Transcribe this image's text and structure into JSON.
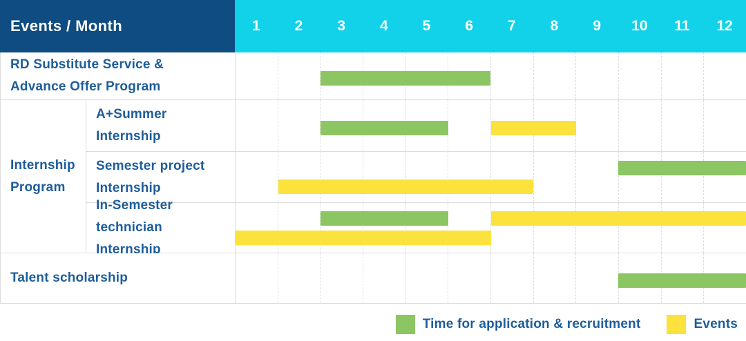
{
  "palette": {
    "navy": "#0E4C82",
    "cyan": "#12D2E9",
    "green": "#8CC663",
    "yellow": "#FBE23D",
    "label_blue": "#1D5D9B",
    "grid_line": "#DCDCDC"
  },
  "header": {
    "title": "Events / Month",
    "months": [
      "1",
      "2",
      "3",
      "4",
      "5",
      "6",
      "7",
      "8",
      "9",
      "10",
      "11",
      "12"
    ]
  },
  "legend": [
    {
      "key": "application",
      "label": "Time for application & recruitment",
      "color": "#8CC663"
    },
    {
      "key": "events",
      "label": "Events",
      "color": "#FBE23D"
    }
  ],
  "chart_data": {
    "type": "gantt",
    "unit": "month",
    "x_domain": [
      1,
      12
    ],
    "x_ticks": [
      "1",
      "2",
      "3",
      "4",
      "5",
      "6",
      "7",
      "8",
      "9",
      "10",
      "11",
      "12"
    ],
    "legend_position": "bottom-right",
    "series_legend": [
      {
        "key": "application",
        "label": "Time for application & recruitment",
        "color": "#8CC663"
      },
      {
        "key": "events",
        "label": "Events",
        "color": "#FBE23D"
      }
    ],
    "rows": [
      {
        "group": null,
        "label": "RD Substitute Service & Advance Offer Program",
        "label_lines": [
          "RD Substitute Service &",
          "Advance Offer Program"
        ],
        "bars": [
          {
            "type": "application",
            "start_month": 3,
            "end_month": 6,
            "lane": "middle"
          }
        ]
      },
      {
        "group": "Internship Program",
        "label": "A+Summer Internship",
        "label_lines": [
          "A+Summer",
          "Internship"
        ],
        "bars": [
          {
            "type": "application",
            "start_month": 3,
            "end_month": 5,
            "lane": "middle"
          },
          {
            "type": "events",
            "start_month": 7,
            "end_month": 8,
            "lane": "middle"
          }
        ]
      },
      {
        "group": "Internship Program",
        "label": "Semester project Internship",
        "label_lines": [
          "Semester project",
          "Internship"
        ],
        "bars": [
          {
            "type": "application",
            "start_month": 10,
            "end_month": 12,
            "lane": "top"
          },
          {
            "type": "events",
            "start_month": 2,
            "end_month": 7,
            "lane": "bottom"
          }
        ]
      },
      {
        "group": "Internship Program",
        "label": "In-Semester technician Internship",
        "label_lines": [
          "In-Semester",
          "technician Internship"
        ],
        "bars": [
          {
            "type": "application",
            "start_month": 3,
            "end_month": 5,
            "lane": "top"
          },
          {
            "type": "events",
            "start_month": 7,
            "end_month": 12,
            "lane": "top"
          },
          {
            "type": "events",
            "start_month": 1,
            "end_month": 6,
            "lane": "bottom"
          }
        ]
      },
      {
        "group": null,
        "label": "Talent scholarship",
        "label_lines": [
          "Talent scholarship"
        ],
        "bars": [
          {
            "type": "application",
            "start_month": 10,
            "end_month": 12,
            "lane": "middle"
          }
        ]
      }
    ],
    "group_label": "Internship Program",
    "group_label_lines": [
      "Internship",
      "Program"
    ]
  }
}
